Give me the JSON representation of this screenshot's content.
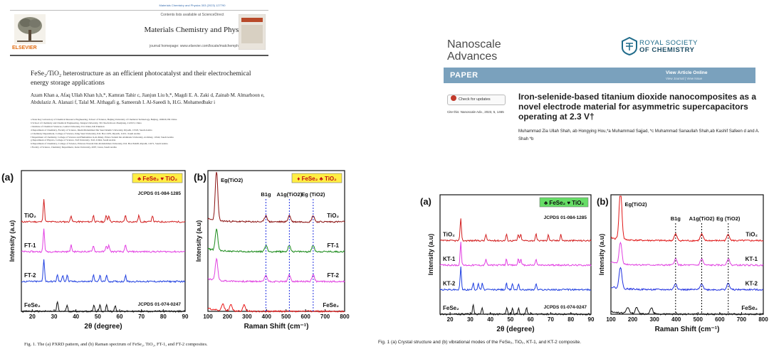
{
  "left_paper": {
    "journal_line": "Materials Chemistry and Physics 303 (2023) 127790",
    "contents_line": "Contents lists available at ScienceDirect",
    "journal_title": "Materials Chemistry and Physics",
    "homepage_line": "journal homepage: www.elsevier.com/locate/matchemphys",
    "publisher": "ELSEVIER",
    "article_title": "FeSe₂/TiO₂ heterostructure as an efficient photocatalyst and their electrochemical energy storage applications",
    "authors": "Azam Khan a, Afaq Ullah Khan b,h,*, Kamran Tahir c, Jianjun Liu b,*, Magdi E. A. Zaki d, Zainab M. Almarhoon e, Abdulaziz A. Alanazi f, Talal M. Althagafi g, Sameerah I. Al-Saeedi h, H.G. Mohamedbakr i",
    "affiliations": [
      "a State Key Laboratory of Chemical Resource Engineering, School of Science, Beijing University of Chemical Technology, Beijing, 100029, PR China",
      "b School of Chemistry and Chemical Engineering, Jiangsu University, 301 Xuefu Road, Zhenjiang, 212013, China",
      "c Institute of Chemical Sciences, Gomal University, D.I. Khan, KP, Pakistan",
      "d Department of Chemistry, Faculty of Science, Imam Mohammad Ibn Saud Islamic University, Riyadh, 13318, Saudi Arabia",
      "e Chemistry Department, College of Science, King Saud University, P.O. Box 2455, Riyadh, 11451, Saudi Arabia",
      "f Department of Chemistry, College of Science and Humanities in Al-Kharj, Prince Sattam bin Abdulaziz University, Al-Kharj, 11942, Saudi Arabia",
      "g Department of Physics, College of Science, Taif University, Taif, 21944, Saudi Arabia",
      "h Department of Chemistry, College of Science, Princess Nourah bint Abdulrahman University, P.O. Box 84428, Riyadh, 11671, Saudi Arabia",
      "i Faculty of Science, Chemistry Department, Jazan University, 2097, Jazan, Saudi Arabia"
    ],
    "figure_caption": "Fig. 1. The (a) PXRD pattern, and (b) Raman spectrum of FeSe₂, TiO₂, FT-1, and FT-2 composites."
  },
  "right_paper": {
    "journal_name_line1": "Nanoscale",
    "journal_name_line2": "Advances",
    "publisher_line1": "ROYAL SOCIETY",
    "publisher_line2": "OF CHEMISTRY",
    "section_label": "PAPER",
    "view_article": "View Article Online",
    "view_links": "View Journal | View Issue",
    "check_updates": "Check for updates",
    "cite_line": "Cite this: Nanoscale Adv., 2023, 5, 1465",
    "article_title": "Iron-selenide-based titanium dioxide nanocomposites as a novel electrode material for asymmetric supercapacitors operating at 2.3 V†",
    "authors": "Muhammad Zia Ullah Shah, ab Hongying Hou,*a Muhammad Sajjad, *c Muhammad Sanaullah Shah,ab Kashif Safeen d and A. Shah *b",
    "figure_caption": "Fig. 1   (a) Crystal structure and (b) vibrational modes of the FeSe₂, TiO₂, KT-1, and KT-2 composite."
  },
  "chart_data": [
    {
      "type": "line",
      "panel": "(a)",
      "legend": "♣ FeSe₂ ♥ TiO₂",
      "xlabel": "2θ (degree)",
      "ylabel": "Intensity (a.u)",
      "xlim": [
        15,
        90
      ],
      "xticks": [
        20,
        30,
        40,
        50,
        60,
        70,
        80,
        90
      ],
      "series": [
        {
          "name": "TiO₂",
          "color": "#d21f1f",
          "peaks": [
            25.3,
            37.8,
            48.0,
            53.9,
            55.1,
            62.7,
            68.8,
            75.0
          ]
        },
        {
          "name": "FT-1",
          "color": "#e23ee2",
          "peaks": [
            25.3,
            37.8,
            48.0,
            53.9,
            55.1,
            62.7
          ]
        },
        {
          "name": "FT-2",
          "color": "#1f3fe0",
          "peaks": [
            25.3,
            31.5,
            34.0,
            36.0,
            48.0,
            51.0,
            54.0,
            62.7
          ]
        },
        {
          "name": "FeSe₂",
          "color": "#111111",
          "peaks": [
            31.5,
            35.9,
            48.2,
            51.0,
            54.0,
            58.0
          ]
        }
      ],
      "annotations": [
        "JCPDS 01-084-1285",
        "JCPDS 01-074-0247"
      ]
    },
    {
      "type": "line",
      "panel": "(b)",
      "legend": "♦ FeSe₂ ♣ TiO₂",
      "xlabel": "Raman Shift (cm⁻¹)",
      "ylabel": "Intensity (a.u)",
      "xlim": [
        100,
        800
      ],
      "xticks": [
        100,
        200,
        300,
        400,
        500,
        600,
        700,
        800
      ],
      "series": [
        {
          "name": "TiO₂",
          "color": "#8a1010",
          "peaks": [
            144,
            397,
            517,
            639
          ]
        },
        {
          "name": "FT-1",
          "color": "#1a8a1a",
          "peaks": [
            144,
            397,
            517,
            639
          ]
        },
        {
          "name": "FT-2",
          "color": "#e040e0",
          "peaks": [
            144,
            397,
            517,
            639
          ]
        },
        {
          "name": "FeSe₂",
          "color": "#e81818",
          "peaks": [
            177,
            218,
            286
          ]
        }
      ],
      "annotations": [
        "Eg(TiO2)",
        "B1g",
        "A1g(TiO2)",
        "Eg (TiO2)"
      ]
    },
    {
      "type": "line",
      "panel": "(a)",
      "legend": "♣ FeSe₂ ♥ TiO₂",
      "xlabel": "2θ (degree)",
      "ylabel": "Intensity (a.u)",
      "xlim": [
        15,
        90
      ],
      "xticks": [
        20,
        30,
        40,
        50,
        60,
        70,
        80,
        90
      ],
      "series": [
        {
          "name": "TiO₂",
          "color": "#d21f1f",
          "peaks": [
            25.3,
            37.8,
            48.0,
            53.9,
            55.1,
            62.7,
            68.8,
            75.0
          ]
        },
        {
          "name": "KT-1",
          "color": "#e23ee2",
          "peaks": [
            25.3,
            37.8,
            48.0,
            53.9,
            55.1,
            62.7
          ]
        },
        {
          "name": "KT-2",
          "color": "#1f3fe0",
          "peaks": [
            25.3,
            31.5,
            34.0,
            36.0,
            48.0,
            51.0,
            54.0,
            62.7
          ]
        },
        {
          "name": "FeSe₂",
          "color": "#111111",
          "peaks": [
            31.5,
            35.9,
            48.2,
            51.0,
            54.0,
            58.0
          ]
        }
      ],
      "annotations": [
        "JCPDS 01-084-1285",
        "JCPDS 01-074-0247"
      ]
    },
    {
      "type": "line",
      "panel": "(b)",
      "xlabel": "Raman Shift (cm⁻¹)",
      "ylabel": "Intensity (a.u)",
      "xlim": [
        100,
        800
      ],
      "xticks": [
        100,
        200,
        300,
        400,
        500,
        600,
        700,
        800
      ],
      "series": [
        {
          "name": "TiO₂",
          "color": "#e01818",
          "peaks": [
            144,
            397,
            517,
            639
          ]
        },
        {
          "name": "KT-1",
          "color": "#e040e0",
          "peaks": [
            144,
            397,
            517,
            639
          ]
        },
        {
          "name": "KT-2",
          "color": "#2030e0",
          "peaks": [
            144,
            397,
            517,
            639
          ]
        },
        {
          "name": "FeSe₂",
          "color": "#111111",
          "peaks": [
            177,
            218,
            286
          ]
        }
      ],
      "annotations": [
        "Eg(TiO2)",
        "B1g",
        "A1g(TiO2)",
        "Eg (TiO2)"
      ]
    }
  ]
}
